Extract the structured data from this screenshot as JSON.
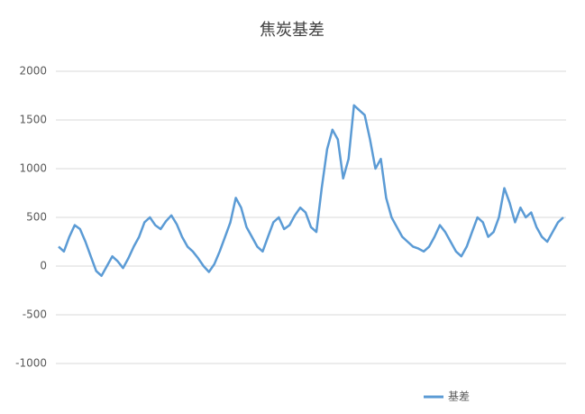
{
  "chart_data": {
    "type": "line",
    "title": "焦炭基差",
    "series": [
      {
        "name": "基差",
        "color": "#5b9bd5",
        "values": [
          200,
          150,
          300,
          420,
          380,
          250,
          100,
          -50,
          -100,
          0,
          100,
          50,
          -20,
          80,
          200,
          300,
          450,
          500,
          420,
          380,
          460,
          520,
          430,
          300,
          200,
          150,
          80,
          0,
          -60,
          20,
          150,
          300,
          450,
          700,
          600,
          400,
          300,
          200,
          150,
          300,
          450,
          500,
          380,
          420,
          520,
          600,
          550,
          400,
          350,
          800,
          1200,
          1400,
          1300,
          900,
          1100,
          1650,
          1600,
          1550,
          1300,
          1000,
          1100,
          700,
          500,
          400,
          300,
          250,
          200,
          180,
          150,
          200,
          300,
          420,
          350,
          250,
          150,
          100,
          200,
          350,
          500,
          450,
          300,
          350,
          500,
          800,
          650,
          450,
          600,
          500,
          550,
          400,
          300,
          250,
          350,
          450,
          500
        ]
      }
    ],
    "ylim": [
      -1000,
      2000
    ],
    "yticks": [
      2000,
      1500,
      1000,
      500,
      0,
      -500,
      -1000
    ],
    "grid": true
  }
}
